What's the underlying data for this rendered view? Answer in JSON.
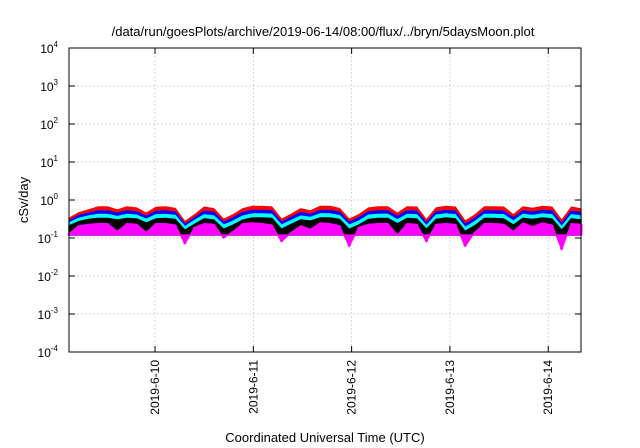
{
  "chart_data": {
    "type": "area",
    "title": "/data/run/goesPlots/archive/2019-06-14/08:00/flux/../bryn/5daysMoon.plot",
    "xlabel": "Coordinated Universal Time (UTC)",
    "ylabel": "cSv/day",
    "yscale": "log",
    "ylim": [
      0.0001,
      10000
    ],
    "yticks": [
      {
        "base": "10",
        "exp": "4",
        "value": 10000
      },
      {
        "base": "10",
        "exp": "3",
        "value": 1000
      },
      {
        "base": "10",
        "exp": "2",
        "value": 100
      },
      {
        "base": "10",
        "exp": "1",
        "value": 10
      },
      {
        "base": "10",
        "exp": "0",
        "value": 1
      },
      {
        "base": "10",
        "exp": "-1",
        "value": 0.1
      },
      {
        "base": "10",
        "exp": "-2",
        "value": 0.01
      },
      {
        "base": "10",
        "exp": "-3",
        "value": 0.001
      },
      {
        "base": "10",
        "exp": "-4",
        "value": 0.0001
      }
    ],
    "xrange_days": [
      "2019-06-09 03:00",
      "2019-06-14 08:00"
    ],
    "xticks": [
      "2019-6-10",
      "2019-6-11",
      "2019-6-12",
      "2019-6-13",
      "2019-6-14"
    ],
    "grid": true,
    "series": [
      {
        "color": "#ff00ff",
        "values": [
          0.13,
          0.21,
          0.23,
          0.24,
          0.24,
          0.15,
          0.24,
          0.23,
          0.14,
          0.24,
          0.24,
          0.22,
          0.07,
          0.19,
          0.24,
          0.23,
          0.1,
          0.15,
          0.24,
          0.25,
          0.24,
          0.22,
          0.08,
          0.14,
          0.21,
          0.17,
          0.25,
          0.24,
          0.21,
          0.06,
          0.19,
          0.23,
          0.24,
          0.24,
          0.12,
          0.24,
          0.23,
          0.08,
          0.23,
          0.24,
          0.23,
          0.06,
          0.14,
          0.24,
          0.24,
          0.23,
          0.15,
          0.25,
          0.2,
          0.25,
          0.22,
          0.05,
          0.24,
          0.23
        ]
      },
      {
        "color": "#000000",
        "values": [
          0.21,
          0.27,
          0.31,
          0.33,
          0.33,
          0.3,
          0.33,
          0.32,
          0.25,
          0.32,
          0.33,
          0.31,
          0.16,
          0.23,
          0.32,
          0.3,
          0.17,
          0.22,
          0.3,
          0.34,
          0.34,
          0.33,
          0.17,
          0.23,
          0.3,
          0.28,
          0.34,
          0.34,
          0.31,
          0.17,
          0.22,
          0.31,
          0.33,
          0.33,
          0.24,
          0.33,
          0.32,
          0.17,
          0.31,
          0.34,
          0.32,
          0.15,
          0.21,
          0.33,
          0.33,
          0.32,
          0.22,
          0.33,
          0.31,
          0.34,
          0.32,
          0.16,
          0.32,
          0.3
        ]
      },
      {
        "color": "#00ffff",
        "values": [
          0.25,
          0.33,
          0.38,
          0.42,
          0.42,
          0.37,
          0.42,
          0.4,
          0.31,
          0.41,
          0.42,
          0.39,
          0.2,
          0.29,
          0.41,
          0.38,
          0.22,
          0.28,
          0.38,
          0.43,
          0.43,
          0.42,
          0.22,
          0.29,
          0.38,
          0.35,
          0.43,
          0.43,
          0.39,
          0.22,
          0.28,
          0.4,
          0.42,
          0.42,
          0.3,
          0.42,
          0.41,
          0.21,
          0.4,
          0.43,
          0.41,
          0.19,
          0.27,
          0.42,
          0.42,
          0.41,
          0.28,
          0.42,
          0.39,
          0.43,
          0.41,
          0.2,
          0.41,
          0.38
        ]
      },
      {
        "color": "#0000ff",
        "values": [
          0.28,
          0.39,
          0.45,
          0.52,
          0.52,
          0.45,
          0.52,
          0.49,
          0.37,
          0.5,
          0.52,
          0.48,
          0.23,
          0.34,
          0.51,
          0.47,
          0.26,
          0.34,
          0.47,
          0.53,
          0.53,
          0.52,
          0.26,
          0.35,
          0.47,
          0.42,
          0.53,
          0.53,
          0.48,
          0.26,
          0.34,
          0.49,
          0.52,
          0.52,
          0.37,
          0.52,
          0.51,
          0.25,
          0.49,
          0.53,
          0.51,
          0.23,
          0.33,
          0.52,
          0.52,
          0.51,
          0.34,
          0.52,
          0.48,
          0.53,
          0.51,
          0.24,
          0.51,
          0.47
        ]
      },
      {
        "color": "#ff0000",
        "values": [
          0.33,
          0.46,
          0.55,
          0.66,
          0.66,
          0.55,
          0.66,
          0.62,
          0.45,
          0.64,
          0.66,
          0.6,
          0.27,
          0.41,
          0.65,
          0.59,
          0.31,
          0.41,
          0.59,
          0.68,
          0.68,
          0.66,
          0.31,
          0.42,
          0.59,
          0.52,
          0.68,
          0.68,
          0.6,
          0.31,
          0.41,
          0.62,
          0.66,
          0.66,
          0.45,
          0.66,
          0.65,
          0.3,
          0.62,
          0.68,
          0.65,
          0.28,
          0.4,
          0.66,
          0.66,
          0.65,
          0.41,
          0.66,
          0.6,
          0.68,
          0.65,
          0.29,
          0.65,
          0.59
        ]
      }
    ]
  }
}
